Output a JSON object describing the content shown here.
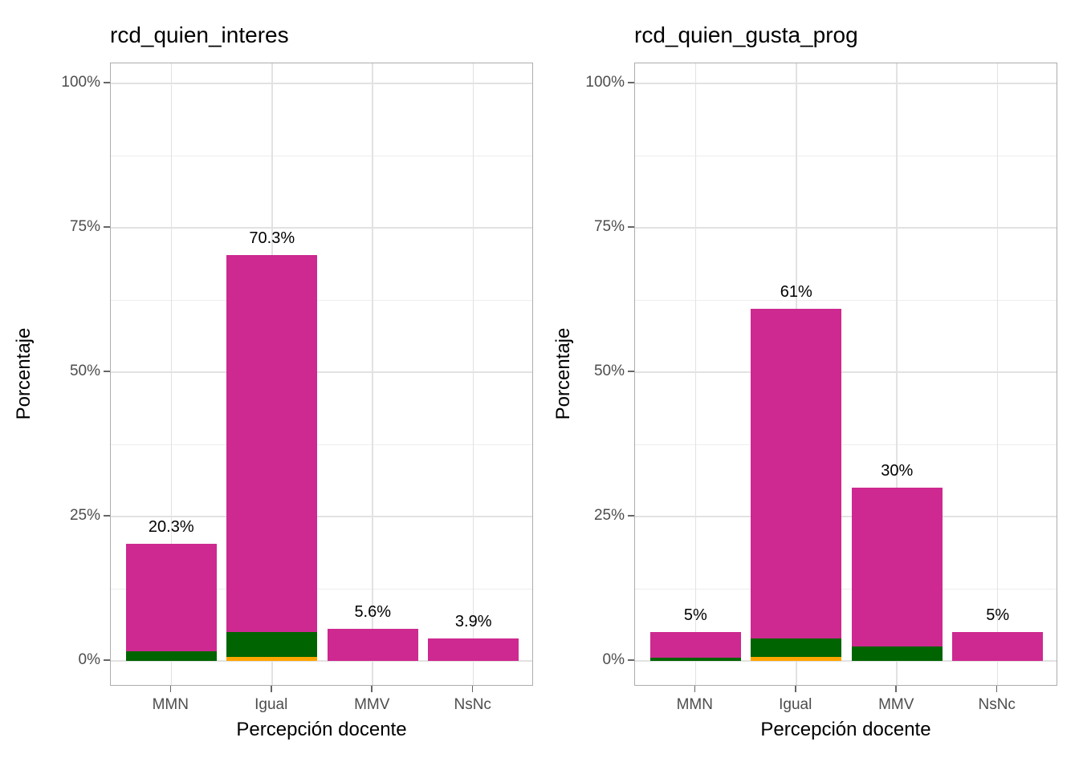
{
  "figure": {
    "background": "#FFFFFF"
  },
  "style": {
    "bar_magenta": "#CD2990",
    "bar_green": "#006400",
    "bar_orange": "#FFA500",
    "grid_major": "#E2E2E2",
    "grid_minor": "#EDEDED",
    "panel_border": "#ADADAD",
    "axis_text": "#4D4D4D",
    "tick_color": "#666666",
    "title_color": "#000000"
  },
  "chart_data": [
    {
      "type": "bar",
      "stacked": true,
      "title": "rcd_quien_interes",
      "xlabel": "Percepción docente",
      "ylabel": "Porcentaje",
      "categories": [
        "MMN",
        "Igual",
        "MMV",
        "NsNc"
      ],
      "totals": [
        20.3,
        70.3,
        5.6,
        3.9
      ],
      "bar_labels": [
        "20.3%",
        "70.3%",
        "5.6%",
        "3.9%"
      ],
      "series": [
        {
          "name": "orange-segment",
          "color": "#FFA500",
          "values": [
            0,
            0.7,
            0,
            0
          ]
        },
        {
          "name": "green-segment",
          "color": "#006400",
          "values": [
            1.7,
            4.3,
            0,
            0
          ]
        },
        {
          "name": "magenta-segment",
          "color": "#CD2990",
          "values": [
            18.6,
            65.3,
            5.6,
            3.9
          ]
        }
      ],
      "ylim": [
        0,
        100
      ],
      "y_major": [
        0,
        25,
        50,
        75,
        100
      ],
      "y_major_labels": [
        "0%",
        "25%",
        "50%",
        "75%",
        "100%"
      ],
      "y_minor": [
        12.5,
        37.5,
        62.5,
        87.5
      ],
      "grid": true,
      "legend": "none"
    },
    {
      "type": "bar",
      "stacked": true,
      "title": "rcd_quien_gusta_prog",
      "xlabel": "Percepción docente",
      "ylabel": "Porcentaje",
      "categories": [
        "MMN",
        "Igual",
        "MMV",
        "NsNc"
      ],
      "totals": [
        5,
        61,
        30,
        5
      ],
      "bar_labels": [
        "5%",
        "61%",
        "30%",
        "5%"
      ],
      "series": [
        {
          "name": "orange-segment",
          "color": "#FFA500",
          "values": [
            0,
            0.7,
            0,
            0
          ]
        },
        {
          "name": "green-segment",
          "color": "#006400",
          "values": [
            0.6,
            3.2,
            2.5,
            0
          ]
        },
        {
          "name": "magenta-segment",
          "color": "#CD2990",
          "values": [
            4.4,
            57.1,
            27.5,
            5
          ]
        }
      ],
      "ylim": [
        0,
        100
      ],
      "y_major": [
        0,
        25,
        50,
        75,
        100
      ],
      "y_major_labels": [
        "0%",
        "25%",
        "50%",
        "75%",
        "100%"
      ],
      "y_minor": [
        12.5,
        37.5,
        62.5,
        87.5
      ],
      "grid": true,
      "legend": "none"
    }
  ]
}
